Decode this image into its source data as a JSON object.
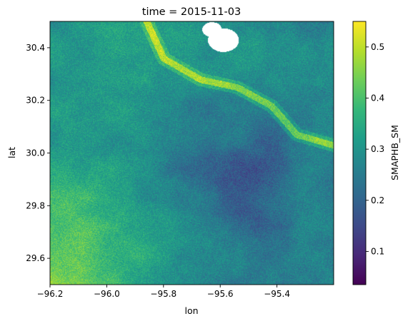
{
  "chart_data": {
    "type": "heatmap",
    "title": "time = 2015-11-03",
    "xlabel": "lon",
    "ylabel": "lat",
    "xlim": [
      -96.2,
      -95.2
    ],
    "ylim": [
      29.5,
      30.5
    ],
    "xticks": [
      -96.2,
      -96.0,
      -95.8,
      -95.6,
      -95.4
    ],
    "xtick_labels": [
      "−96.2",
      "−96.0",
      "−95.8",
      "−95.6",
      "−95.4"
    ],
    "yticks": [
      29.6,
      29.8,
      30.0,
      30.2,
      30.4
    ],
    "ytick_labels": [
      "29.6",
      "29.8",
      "30.0",
      "30.2",
      "30.4"
    ],
    "colorbar": {
      "label": "SMAPHB_SM",
      "range": [
        0.035,
        0.55
      ],
      "ticks": [
        0.1,
        0.2,
        0.3,
        0.4,
        0.5
      ],
      "tick_labels": [
        "0.1",
        "0.2",
        "0.3",
        "0.4",
        "0.5"
      ],
      "colormap": "viridis",
      "colors": [
        "#440154",
        "#482878",
        "#3e4a89",
        "#31688e",
        "#26828e",
        "#1f9e89",
        "#35b779",
        "#6ece58",
        "#b5de2b",
        "#fde725"
      ]
    },
    "grid": false,
    "missing_color": "#ffffff",
    "field_description": "soil moisture field; lowest (0.1-0.2) in the east-central region, highest (0.45-0.55) in the southwest and along the river channel running from the upper-left to the right edge; missing values near the top center"
  }
}
